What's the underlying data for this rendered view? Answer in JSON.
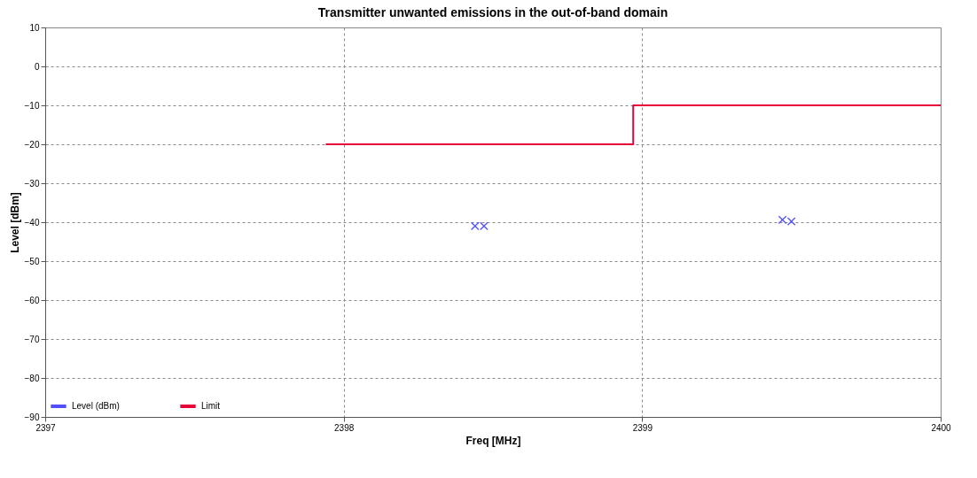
{
  "chart_data": {
    "type": "scatter",
    "title": "Transmitter unwanted emissions in the out-of-band domain",
    "xlabel": "Freq [MHz]",
    "ylabel": "Level [dBm]",
    "series": [
      {
        "name": "Level (dBm)",
        "color": "#5050ff",
        "marker": "cross",
        "x": [
          2398.44,
          2398.47,
          2399.47,
          2399.5
        ],
        "values": [
          -41,
          -41,
          -39.4,
          -39.8
        ]
      },
      {
        "name": "Limit",
        "type": "step",
        "color": "#e8003a",
        "marker": "none",
        "x": [
          2397.94,
          2398.97,
          2400
        ],
        "values": [
          -20,
          -10,
          -10
        ]
      }
    ],
    "xlim": [
      2397,
      2400
    ],
    "xticks": [
      2397,
      2398,
      2399,
      2400
    ],
    "ylim": [
      -90,
      10
    ],
    "yticks": [
      -90,
      -80,
      -70,
      -60,
      -50,
      -40,
      -30,
      -20,
      -10,
      0,
      10
    ],
    "grid": true,
    "legend": "bottom left"
  }
}
